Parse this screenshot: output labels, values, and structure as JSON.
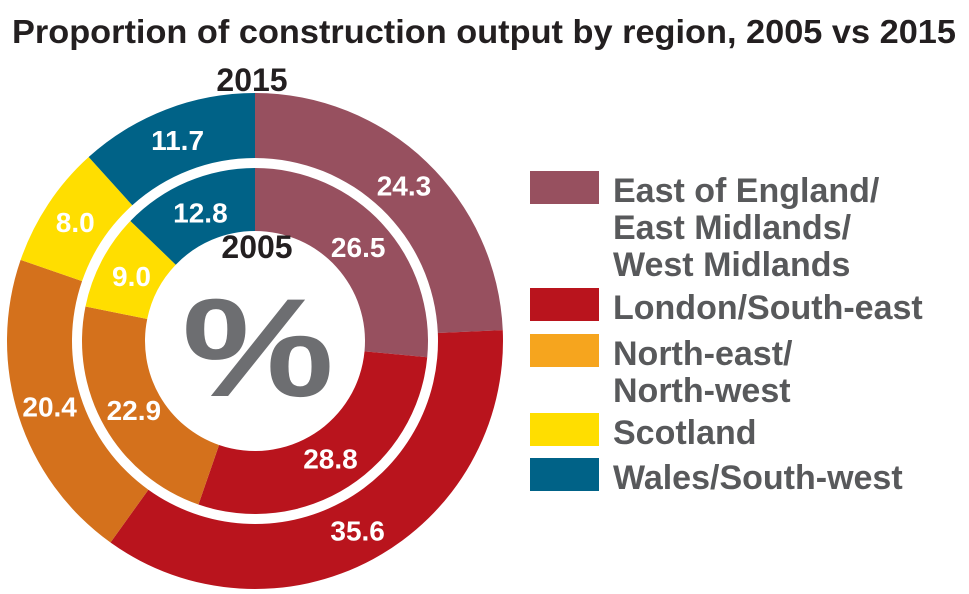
{
  "chart_data": {
    "type": "pie",
    "variant": "nested-donut",
    "title": "Proportion of construction output by region, 2005 vs 2015",
    "center_label": "%",
    "categories": [
      [
        "East of England/",
        "East Midlands/",
        "West Midlands"
      ],
      [
        "London/South-east"
      ],
      [
        "North-east/",
        "North-west"
      ],
      [
        "Scotland"
      ],
      [
        "Wales/South-west"
      ]
    ],
    "colors": [
      "#97505f",
      "#b9141d",
      "#d4711c",
      "#ffde00",
      "#006287"
    ],
    "legend_colors": [
      "#97505f",
      "#b9141d",
      "#f6a51e",
      "#ffde00",
      "#006287"
    ],
    "legend_position": "right",
    "series": [
      {
        "name": "2015",
        "ring": "outer",
        "values": [
          24.3,
          35.6,
          20.4,
          8.0,
          11.7
        ]
      },
      {
        "name": "2005",
        "ring": "inner",
        "values": [
          26.5,
          28.8,
          22.9,
          9.0,
          12.8
        ]
      }
    ]
  }
}
